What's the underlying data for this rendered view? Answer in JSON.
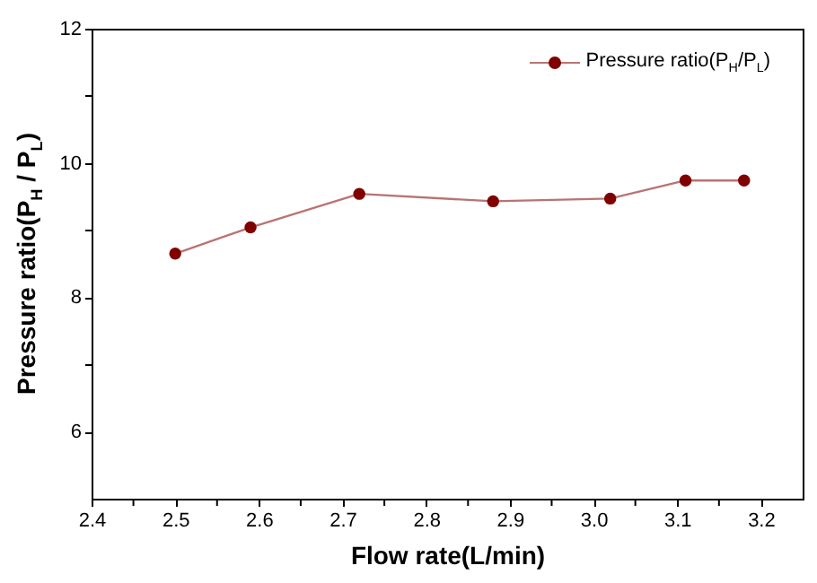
{
  "chart_data": {
    "type": "line",
    "xlabel": "Flow rate(L/min)",
    "ylabel": "Pressure ratio(P$_{H}$ / P$_{L}$)",
    "x": [
      2.5,
      2.59,
      2.72,
      2.88,
      3.02,
      3.11,
      3.18
    ],
    "series": [
      {
        "name": "Pressure ratio(P$_{H}$/P$_{L}$)",
        "color": "#800000",
        "values": [
          8.65,
          9.04,
          9.54,
          9.43,
          9.47,
          9.74,
          9.74
        ]
      }
    ],
    "xlim": [
      2.4,
      3.25
    ],
    "ylim": [
      5,
      12
    ],
    "xticks": [
      2.4,
      {
        "value": 2.45,
        "label": null
      },
      2.5,
      {
        "value": 2.55,
        "label": null
      },
      2.6,
      {
        "value": 2.65,
        "label": null
      },
      2.7,
      {
        "value": 2.75,
        "label": null
      },
      2.8,
      {
        "value": 2.85,
        "label": null
      },
      2.9,
      {
        "value": 2.95,
        "label": null
      },
      "3.0",
      {
        "value": 3.05,
        "label": null
      },
      3.1,
      {
        "value": 3.15,
        "label": null
      },
      3.2
    ],
    "yticks": [
      6,
      {
        "value": 7,
        "label": null
      },
      8,
      {
        "value": 9,
        "label": null
      },
      10,
      {
        "value": 11,
        "label": null
      },
      12
    ],
    "marker": "circle",
    "legend": "top right"
  }
}
